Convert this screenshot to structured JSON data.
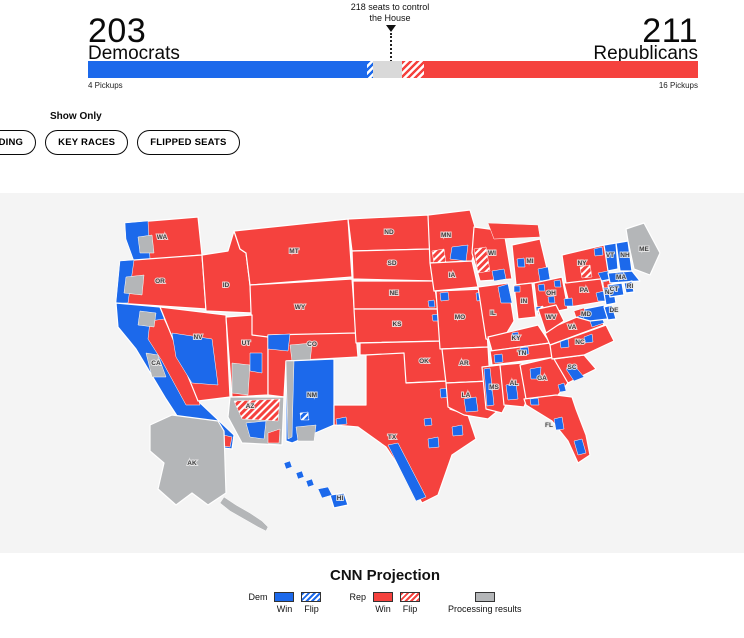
{
  "balance_of_power": {
    "dem_count": "203",
    "dem_label": "Democrats",
    "dem_pickups": "4 Pickups",
    "rep_count": "211",
    "rep_label": "Republicans",
    "rep_pickups": "16 Pickups",
    "control_note_line1": "218 seats to control",
    "control_note_line2": "the House",
    "seats": {
      "dem_win": 199,
      "dem_flip": 4,
      "uncalled": 21,
      "rep_flip": 16,
      "rep_win": 195,
      "total": 435,
      "majority": 218
    }
  },
  "filters": {
    "show_only_label": "Show Only",
    "buttons": [
      {
        "label": "LEADING"
      },
      {
        "label": "KEY RACES"
      },
      {
        "label": "FLIPPED SEATS"
      }
    ]
  },
  "legend": {
    "title": "CNN Projection",
    "dem_group_label": "Dem",
    "rep_group_label": "Rep",
    "dem_win_label": "Win",
    "dem_flip_label": "Flip",
    "rep_win_label": "Win",
    "rep_flip_label": "Flip",
    "processing_label": "Processing results"
  },
  "colors": {
    "dem": "#1c69eb",
    "rep": "#f5423e",
    "processing": "#b4b6b8",
    "uncalled_bar": "#d9d9d9",
    "map_background": "#f4f4f4"
  },
  "map": {
    "states": [
      {
        "abbr": "WA",
        "status": "rep"
      },
      {
        "abbr": "OR",
        "status": "rep"
      },
      {
        "abbr": "CA",
        "status": "dem"
      },
      {
        "abbr": "NV",
        "status": "rep"
      },
      {
        "abbr": "ID",
        "status": "rep"
      },
      {
        "abbr": "MT",
        "status": "rep"
      },
      {
        "abbr": "WY",
        "status": "rep"
      },
      {
        "abbr": "UT",
        "status": "rep"
      },
      {
        "abbr": "CO",
        "status": "rep"
      },
      {
        "abbr": "AZ",
        "status": "processing"
      },
      {
        "abbr": "NM",
        "status": "dem"
      },
      {
        "abbr": "ND",
        "status": "rep"
      },
      {
        "abbr": "SD",
        "status": "rep"
      },
      {
        "abbr": "NE",
        "status": "rep"
      },
      {
        "abbr": "KS",
        "status": "rep"
      },
      {
        "abbr": "OK",
        "status": "rep"
      },
      {
        "abbr": "TX",
        "status": "rep"
      },
      {
        "abbr": "MN",
        "status": "rep"
      },
      {
        "abbr": "IA",
        "status": "rep"
      },
      {
        "abbr": "MO",
        "status": "rep"
      },
      {
        "abbr": "WI",
        "status": "rep"
      },
      {
        "abbr": "IL",
        "status": "rep"
      },
      {
        "abbr": "MI",
        "status": "rep"
      },
      {
        "abbr": "IN",
        "status": "rep"
      },
      {
        "abbr": "OH",
        "status": "rep"
      },
      {
        "abbr": "KY",
        "status": "rep"
      },
      {
        "abbr": "TN",
        "status": "rep"
      },
      {
        "abbr": "AR",
        "status": "rep"
      },
      {
        "abbr": "LA",
        "status": "rep"
      },
      {
        "abbr": "MS",
        "status": "rep"
      },
      {
        "abbr": "AL",
        "status": "rep"
      },
      {
        "abbr": "GA",
        "status": "rep"
      },
      {
        "abbr": "FL",
        "status": "rep"
      },
      {
        "abbr": "SC",
        "status": "rep"
      },
      {
        "abbr": "NC",
        "status": "rep"
      },
      {
        "abbr": "VA",
        "status": "rep"
      },
      {
        "abbr": "WV",
        "status": "rep"
      },
      {
        "abbr": "PA",
        "status": "rep"
      },
      {
        "abbr": "NY",
        "status": "rep"
      },
      {
        "abbr": "NJ",
        "status": "dem"
      },
      {
        "abbr": "MD",
        "status": "dem"
      },
      {
        "abbr": "DE",
        "status": "dem"
      },
      {
        "abbr": "VT",
        "status": "dem"
      },
      {
        "abbr": "NH",
        "status": "dem"
      },
      {
        "abbr": "MA",
        "status": "dem"
      },
      {
        "abbr": "CT",
        "status": "dem"
      },
      {
        "abbr": "RI",
        "status": "dem"
      },
      {
        "abbr": "ME",
        "status": "processing"
      },
      {
        "abbr": "AK",
        "status": "processing"
      },
      {
        "abbr": "HI",
        "status": "dem"
      }
    ]
  }
}
